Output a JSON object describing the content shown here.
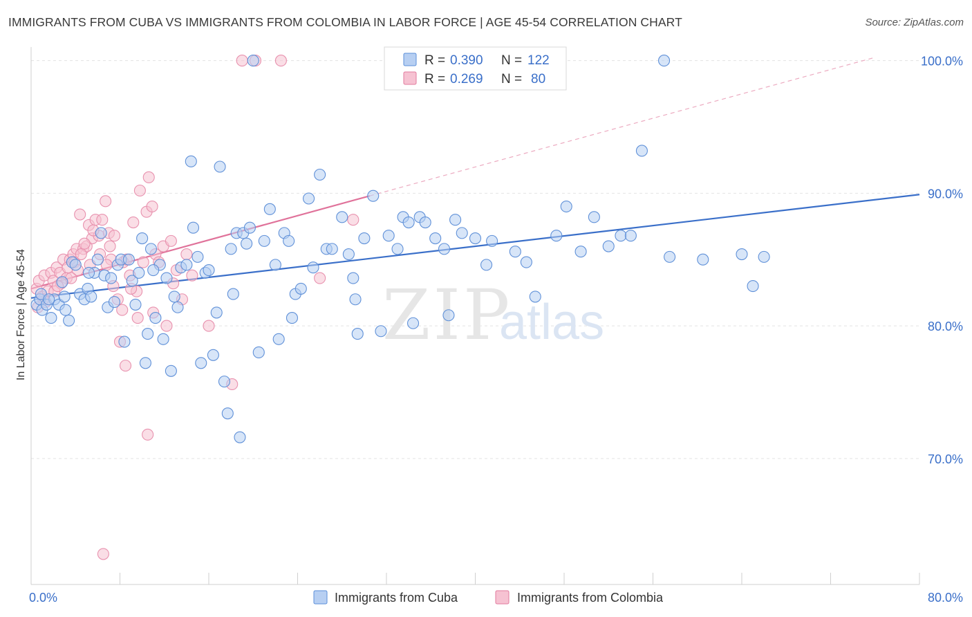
{
  "title": "IMMIGRANTS FROM CUBA VS IMMIGRANTS FROM COLOMBIA IN LABOR FORCE | AGE 45-54 CORRELATION CHART",
  "source": "Source: ZipAtlas.com",
  "watermark": {
    "zip": "ZIP",
    "atlas": "atlas"
  },
  "legend": {
    "r_label": "R =",
    "n_label": "N =",
    "entries": [
      {
        "name": "Cuba",
        "r": "0.390",
        "n": "122",
        "fill": "#b7cff2",
        "stroke": "#5b8fd9"
      },
      {
        "name": "Colombia",
        "r": "0.269",
        "n": "80",
        "fill": "#f6c2d2",
        "stroke": "#e27a9e"
      }
    ]
  },
  "bottom_legend": [
    "Immigrants from Cuba",
    "Immigrants from Colombia"
  ],
  "colors": {
    "blue": "#3a6fc9",
    "blue_fill": "#b7cff2",
    "pink": "#e0729a",
    "pink_fill": "#f6c2d2",
    "grid": "#e3e3e3"
  },
  "chart_data": {
    "type": "scatter",
    "title": "IMMIGRANTS FROM CUBA VS IMMIGRANTS FROM COLOMBIA IN LABOR FORCE | AGE 45-54 CORRELATION CHART",
    "xlabel": "",
    "ylabel": "In Labor Force | Age 45-54",
    "xlim": [
      0,
      80
    ],
    "ylim": [
      60.5,
      100.5
    ],
    "x_tick_labels": [
      {
        "value": 0,
        "label": "0.0%"
      },
      {
        "value": 80,
        "label": "80.0%"
      }
    ],
    "y_tick_labels": [
      {
        "value": 100,
        "label": "100.0%"
      },
      {
        "value": 90,
        "label": "90.0%"
      },
      {
        "value": 80,
        "label": "80.0%"
      },
      {
        "value": 70,
        "label": "70.0%"
      }
    ],
    "series": [
      {
        "name": "Immigrants from Cuba",
        "r": 0.39,
        "n": 122,
        "trend": {
          "x": [
            0,
            80
          ],
          "y": [
            82.1,
            89.9
          ]
        },
        "points": [
          [
            0.5,
            81.6
          ],
          [
            0.8,
            82.0
          ],
          [
            1.0,
            81.2
          ],
          [
            1.4,
            81.6
          ],
          [
            1.8,
            80.6
          ],
          [
            2.1,
            82.0
          ],
          [
            2.5,
            81.6
          ],
          [
            2.8,
            83.3
          ],
          [
            3.1,
            81.2
          ],
          [
            3.4,
            80.4
          ],
          [
            3.7,
            84.8
          ],
          [
            4.0,
            84.6
          ],
          [
            4.4,
            82.4
          ],
          [
            4.8,
            82.0
          ],
          [
            5.1,
            82.8
          ],
          [
            5.4,
            82.2
          ],
          [
            5.7,
            84.0
          ],
          [
            6.0,
            85.0
          ],
          [
            6.3,
            87.0
          ],
          [
            6.6,
            83.8
          ],
          [
            6.9,
            81.4
          ],
          [
            7.2,
            83.6
          ],
          [
            7.5,
            81.8
          ],
          [
            7.8,
            84.6
          ],
          [
            8.1,
            85.0
          ],
          [
            8.4,
            78.8
          ],
          [
            8.8,
            85.0
          ],
          [
            9.1,
            83.4
          ],
          [
            9.4,
            81.6
          ],
          [
            9.7,
            84.0
          ],
          [
            10.0,
            86.6
          ],
          [
            10.3,
            77.2
          ],
          [
            10.5,
            79.4
          ],
          [
            10.8,
            85.8
          ],
          [
            11.2,
            80.6
          ],
          [
            11.6,
            84.6
          ],
          [
            11.9,
            79.0
          ],
          [
            12.2,
            83.6
          ],
          [
            12.6,
            76.6
          ],
          [
            12.9,
            82.2
          ],
          [
            13.2,
            81.4
          ],
          [
            13.5,
            84.4
          ],
          [
            14.0,
            84.6
          ],
          [
            14.4,
            92.4
          ],
          [
            14.6,
            87.4
          ],
          [
            15.0,
            85.2
          ],
          [
            15.3,
            77.2
          ],
          [
            15.7,
            84.0
          ],
          [
            16.0,
            84.2
          ],
          [
            16.4,
            77.8
          ],
          [
            16.7,
            81.0
          ],
          [
            17.0,
            92.0
          ],
          [
            17.4,
            75.8
          ],
          [
            17.7,
            73.4
          ],
          [
            18.0,
            85.8
          ],
          [
            18.2,
            82.4
          ],
          [
            18.5,
            87.0
          ],
          [
            18.8,
            71.6
          ],
          [
            19.1,
            87.0
          ],
          [
            19.4,
            86.2
          ],
          [
            19.7,
            87.4
          ],
          [
            20.0,
            100.0
          ],
          [
            20.5,
            78.0
          ],
          [
            21.0,
            86.4
          ],
          [
            21.5,
            88.8
          ],
          [
            22.0,
            84.6
          ],
          [
            22.3,
            79.0
          ],
          [
            22.8,
            87.0
          ],
          [
            23.2,
            86.4
          ],
          [
            23.5,
            80.6
          ],
          [
            23.8,
            82.4
          ],
          [
            24.3,
            82.8
          ],
          [
            25.0,
            89.6
          ],
          [
            25.4,
            84.4
          ],
          [
            26.0,
            91.4
          ],
          [
            26.6,
            85.8
          ],
          [
            27.1,
            85.8
          ],
          [
            28.0,
            88.2
          ],
          [
            28.6,
            85.4
          ],
          [
            29.0,
            83.6
          ],
          [
            29.2,
            82.0
          ],
          [
            29.4,
            79.4
          ],
          [
            30.0,
            86.6
          ],
          [
            30.8,
            89.8
          ],
          [
            31.5,
            79.6
          ],
          [
            32.2,
            86.8
          ],
          [
            33.0,
            85.8
          ],
          [
            33.5,
            88.2
          ],
          [
            34.0,
            87.8
          ],
          [
            34.4,
            80.2
          ],
          [
            35.0,
            88.2
          ],
          [
            35.5,
            87.8
          ],
          [
            36.4,
            86.6
          ],
          [
            37.2,
            85.8
          ],
          [
            37.6,
            80.8
          ],
          [
            38.2,
            88.0
          ],
          [
            38.8,
            87.0
          ],
          [
            40.0,
            86.6
          ],
          [
            41.0,
            84.6
          ],
          [
            41.5,
            86.4
          ],
          [
            43.6,
            85.6
          ],
          [
            44.6,
            84.8
          ],
          [
            45.4,
            82.2
          ],
          [
            47.3,
            86.8
          ],
          [
            48.2,
            89.0
          ],
          [
            49.5,
            85.6
          ],
          [
            50.7,
            88.2
          ],
          [
            52.0,
            86.0
          ],
          [
            53.1,
            86.8
          ],
          [
            54.0,
            86.8
          ],
          [
            55.0,
            93.2
          ],
          [
            57.0,
            100.0
          ],
          [
            57.5,
            85.2
          ],
          [
            60.5,
            85.0
          ],
          [
            64.0,
            85.4
          ],
          [
            65.0,
            83.0
          ],
          [
            66.0,
            85.2
          ],
          [
            0.9,
            82.4
          ],
          [
            1.6,
            82.0
          ],
          [
            3.0,
            82.2
          ],
          [
            5.2,
            84.0
          ],
          [
            11.0,
            84.2
          ]
        ]
      },
      {
        "name": "Immigrants from Colombia",
        "r": 0.269,
        "n": 80,
        "trend": {
          "x": [
            0,
            30.5
          ],
          "y": [
            82.8,
            89.8
          ]
        },
        "points": [
          [
            0.5,
            82.8
          ],
          [
            0.7,
            83.4
          ],
          [
            1.0,
            82.2
          ],
          [
            1.2,
            83.8
          ],
          [
            1.5,
            82.6
          ],
          [
            1.8,
            84.0
          ],
          [
            2.0,
            83.4
          ],
          [
            2.3,
            84.4
          ],
          [
            2.6,
            84.0
          ],
          [
            2.9,
            85.0
          ],
          [
            3.2,
            83.6
          ],
          [
            3.5,
            85.0
          ],
          [
            3.8,
            85.4
          ],
          [
            4.1,
            85.8
          ],
          [
            4.4,
            88.4
          ],
          [
            4.7,
            85.8
          ],
          [
            5.0,
            86.0
          ],
          [
            5.2,
            87.6
          ],
          [
            5.5,
            86.6
          ],
          [
            5.8,
            88.0
          ],
          [
            6.1,
            86.8
          ],
          [
            6.4,
            88.0
          ],
          [
            6.7,
            89.4
          ],
          [
            7.0,
            87.0
          ],
          [
            7.2,
            85.0
          ],
          [
            7.5,
            86.8
          ],
          [
            7.8,
            82.0
          ],
          [
            8.0,
            78.8
          ],
          [
            8.3,
            84.8
          ],
          [
            8.6,
            85.0
          ],
          [
            8.9,
            83.8
          ],
          [
            9.2,
            87.8
          ],
          [
            9.5,
            82.6
          ],
          [
            9.8,
            90.2
          ],
          [
            10.1,
            84.8
          ],
          [
            10.4,
            88.6
          ],
          [
            10.6,
            91.2
          ],
          [
            10.9,
            89.0
          ],
          [
            11.2,
            85.4
          ],
          [
            11.5,
            84.8
          ],
          [
            11.9,
            86.0
          ],
          [
            12.2,
            80.0
          ],
          [
            12.6,
            86.4
          ],
          [
            13.1,
            84.2
          ],
          [
            14.0,
            85.4
          ],
          [
            14.5,
            83.8
          ],
          [
            16.0,
            80.0
          ],
          [
            18.1,
            75.6
          ],
          [
            19.0,
            100.0
          ],
          [
            20.2,
            100.0
          ],
          [
            22.5,
            100.0
          ],
          [
            26.0,
            83.6
          ],
          [
            29.0,
            88.0
          ],
          [
            6.5,
            62.8
          ],
          [
            10.5,
            71.8
          ],
          [
            8.5,
            77.0
          ],
          [
            0.6,
            81.4
          ],
          [
            1.3,
            81.8
          ],
          [
            2.1,
            82.6
          ],
          [
            2.7,
            83.2
          ],
          [
            3.3,
            84.4
          ],
          [
            3.9,
            84.8
          ],
          [
            4.5,
            85.4
          ],
          [
            5.3,
            84.6
          ],
          [
            6.2,
            85.4
          ],
          [
            7.1,
            86.0
          ],
          [
            9.0,
            82.8
          ],
          [
            9.6,
            80.6
          ],
          [
            11.0,
            81.0
          ],
          [
            12.8,
            83.2
          ],
          [
            13.6,
            82.0
          ],
          [
            4.2,
            84.2
          ],
          [
            5.6,
            87.2
          ],
          [
            6.8,
            84.6
          ],
          [
            7.4,
            83.0
          ],
          [
            8.2,
            81.2
          ],
          [
            2.4,
            83.0
          ],
          [
            1.1,
            82.0
          ],
          [
            3.6,
            83.6
          ],
          [
            4.8,
            86.2
          ]
        ]
      }
    ]
  }
}
